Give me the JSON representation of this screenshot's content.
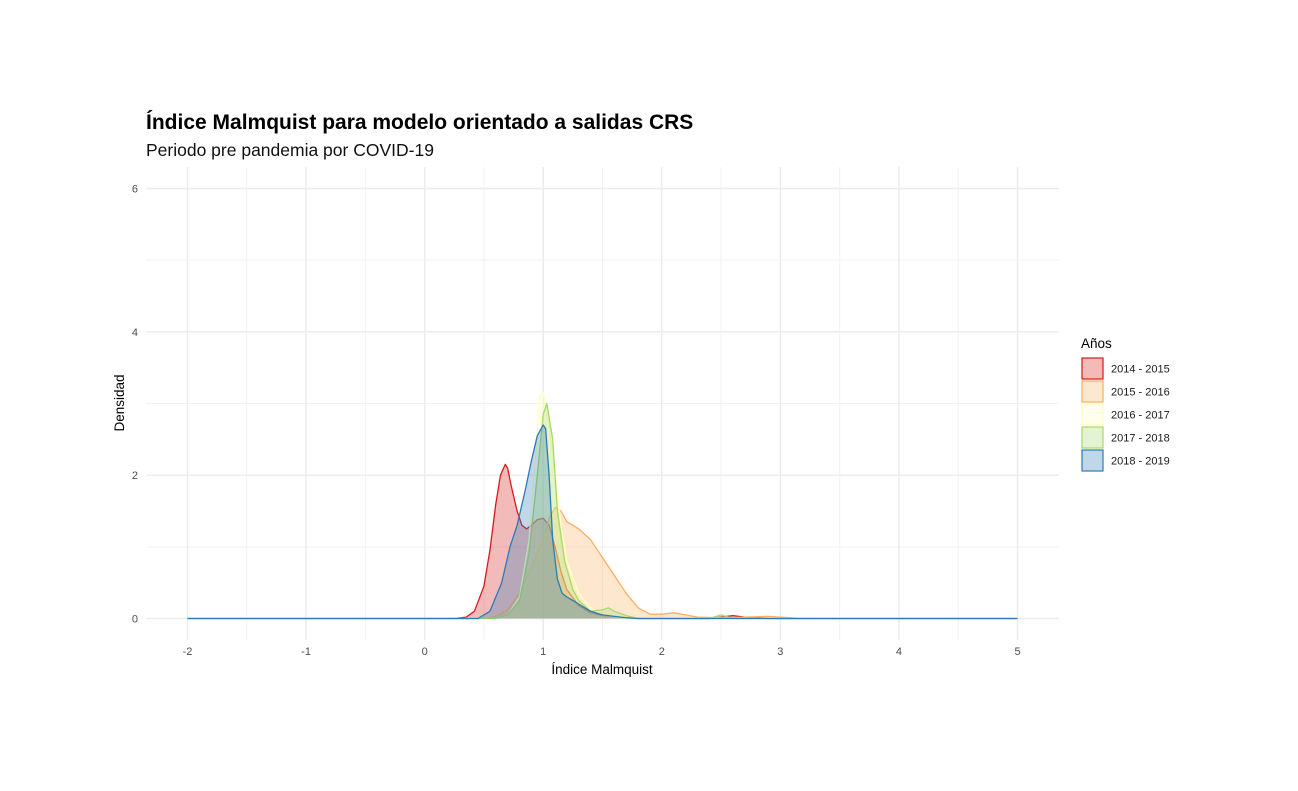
{
  "chart_data": {
    "type": "area",
    "title": "Índice Malmquist para modelo orientado a salidas CRS",
    "subtitle": "Periodo pre pandemia por COVID-19",
    "xlabel": "Índice Malmquist",
    "ylabel": "Densidad",
    "xlim": [
      -2.35,
      5.35
    ],
    "ylim": [
      -0.3,
      6.3
    ],
    "x_ticks": [
      -2,
      -1,
      0,
      1,
      2,
      3,
      4,
      5
    ],
    "y_ticks": [
      0,
      2,
      4,
      6
    ],
    "grid": true,
    "legend": {
      "title": "Años",
      "placement": "right"
    },
    "series": [
      {
        "name": "2014 - 2015",
        "color": "#d7191c",
        "fill": "#d7191c",
        "fill_opacity": 0.3,
        "x": [
          -2,
          0.25,
          0.35,
          0.42,
          0.5,
          0.55,
          0.6,
          0.64,
          0.68,
          0.7,
          0.73,
          0.78,
          0.82,
          0.86,
          0.9,
          0.95,
          1.0,
          1.05,
          1.1,
          1.15,
          1.2,
          1.3,
          1.4,
          1.5,
          1.6,
          1.7,
          1.8,
          2.0,
          2.4,
          2.6,
          2.7,
          2.9,
          5
        ],
        "y": [
          0,
          0,
          0.02,
          0.1,
          0.45,
          0.95,
          1.6,
          2.0,
          2.15,
          2.1,
          1.85,
          1.5,
          1.3,
          1.25,
          1.3,
          1.38,
          1.4,
          1.3,
          1.0,
          0.65,
          0.4,
          0.18,
          0.08,
          0.04,
          0.02,
          0.01,
          0.0,
          0.0,
          0.0,
          0.04,
          0.02,
          0.0,
          0
        ]
      },
      {
        "name": "2015 - 2016",
        "color": "#fdae61",
        "fill": "#fdae61",
        "fill_opacity": 0.3,
        "x": [
          -2,
          0.5,
          0.6,
          0.7,
          0.8,
          0.9,
          1.0,
          1.05,
          1.1,
          1.15,
          1.2,
          1.3,
          1.4,
          1.5,
          1.6,
          1.7,
          1.8,
          1.9,
          2.0,
          2.1,
          2.2,
          2.3,
          2.5,
          2.7,
          2.9,
          3.0,
          3.1,
          3.2,
          5
        ],
        "y": [
          0,
          0,
          0.03,
          0.12,
          0.35,
          0.72,
          1.1,
          1.4,
          1.55,
          1.5,
          1.35,
          1.25,
          1.1,
          0.85,
          0.6,
          0.35,
          0.15,
          0.06,
          0.06,
          0.08,
          0.05,
          0.02,
          0.01,
          0.02,
          0.03,
          0.02,
          0.01,
          0.0,
          0
        ]
      },
      {
        "name": "2016 - 2017",
        "color": "#ffffbf",
        "fill": "#ffffbf",
        "fill_opacity": 0.3,
        "x": [
          -2,
          0.6,
          0.7,
          0.8,
          0.88,
          0.94,
          0.97,
          1.0,
          1.05,
          1.1,
          1.15,
          1.2,
          1.3,
          1.4,
          1.5,
          1.6,
          1.7,
          5
        ],
        "y": [
          0,
          0,
          0.05,
          0.3,
          1.1,
          2.4,
          3.1,
          3.15,
          2.7,
          2.0,
          1.3,
          0.8,
          0.35,
          0.15,
          0.05,
          0.02,
          0.0,
          0
        ]
      },
      {
        "name": "2017 - 2018",
        "color": "#a6d96a",
        "fill": "#a6d96a",
        "fill_opacity": 0.3,
        "x": [
          -2,
          0.6,
          0.7,
          0.8,
          0.88,
          0.95,
          1.0,
          1.03,
          1.08,
          1.12,
          1.18,
          1.25,
          1.3,
          1.4,
          1.5,
          1.55,
          1.6,
          1.7,
          1.8,
          2.4,
          2.5,
          2.6,
          5
        ],
        "y": [
          0,
          0,
          0.05,
          0.25,
          0.9,
          2.0,
          2.85,
          3.0,
          2.5,
          1.5,
          0.8,
          0.4,
          0.25,
          0.1,
          0.12,
          0.15,
          0.1,
          0.04,
          0.0,
          0.0,
          0.05,
          0.0,
          0
        ]
      },
      {
        "name": "2018 - 2019",
        "color": "#2c7bb6",
        "fill": "#2c7bb6",
        "fill_opacity": 0.3,
        "x": [
          -2,
          0.45,
          0.55,
          0.65,
          0.72,
          0.78,
          0.85,
          0.9,
          0.95,
          1.0,
          1.02,
          1.05,
          1.08,
          1.12,
          1.16,
          1.2,
          1.25,
          1.3,
          1.4,
          1.5,
          1.6,
          1.7,
          1.8,
          5
        ],
        "y": [
          0,
          0,
          0.1,
          0.5,
          1.0,
          1.3,
          1.8,
          2.2,
          2.55,
          2.7,
          2.65,
          2.0,
          1.1,
          0.55,
          0.35,
          0.3,
          0.25,
          0.2,
          0.1,
          0.05,
          0.03,
          0.01,
          0.0,
          0
        ]
      }
    ]
  }
}
